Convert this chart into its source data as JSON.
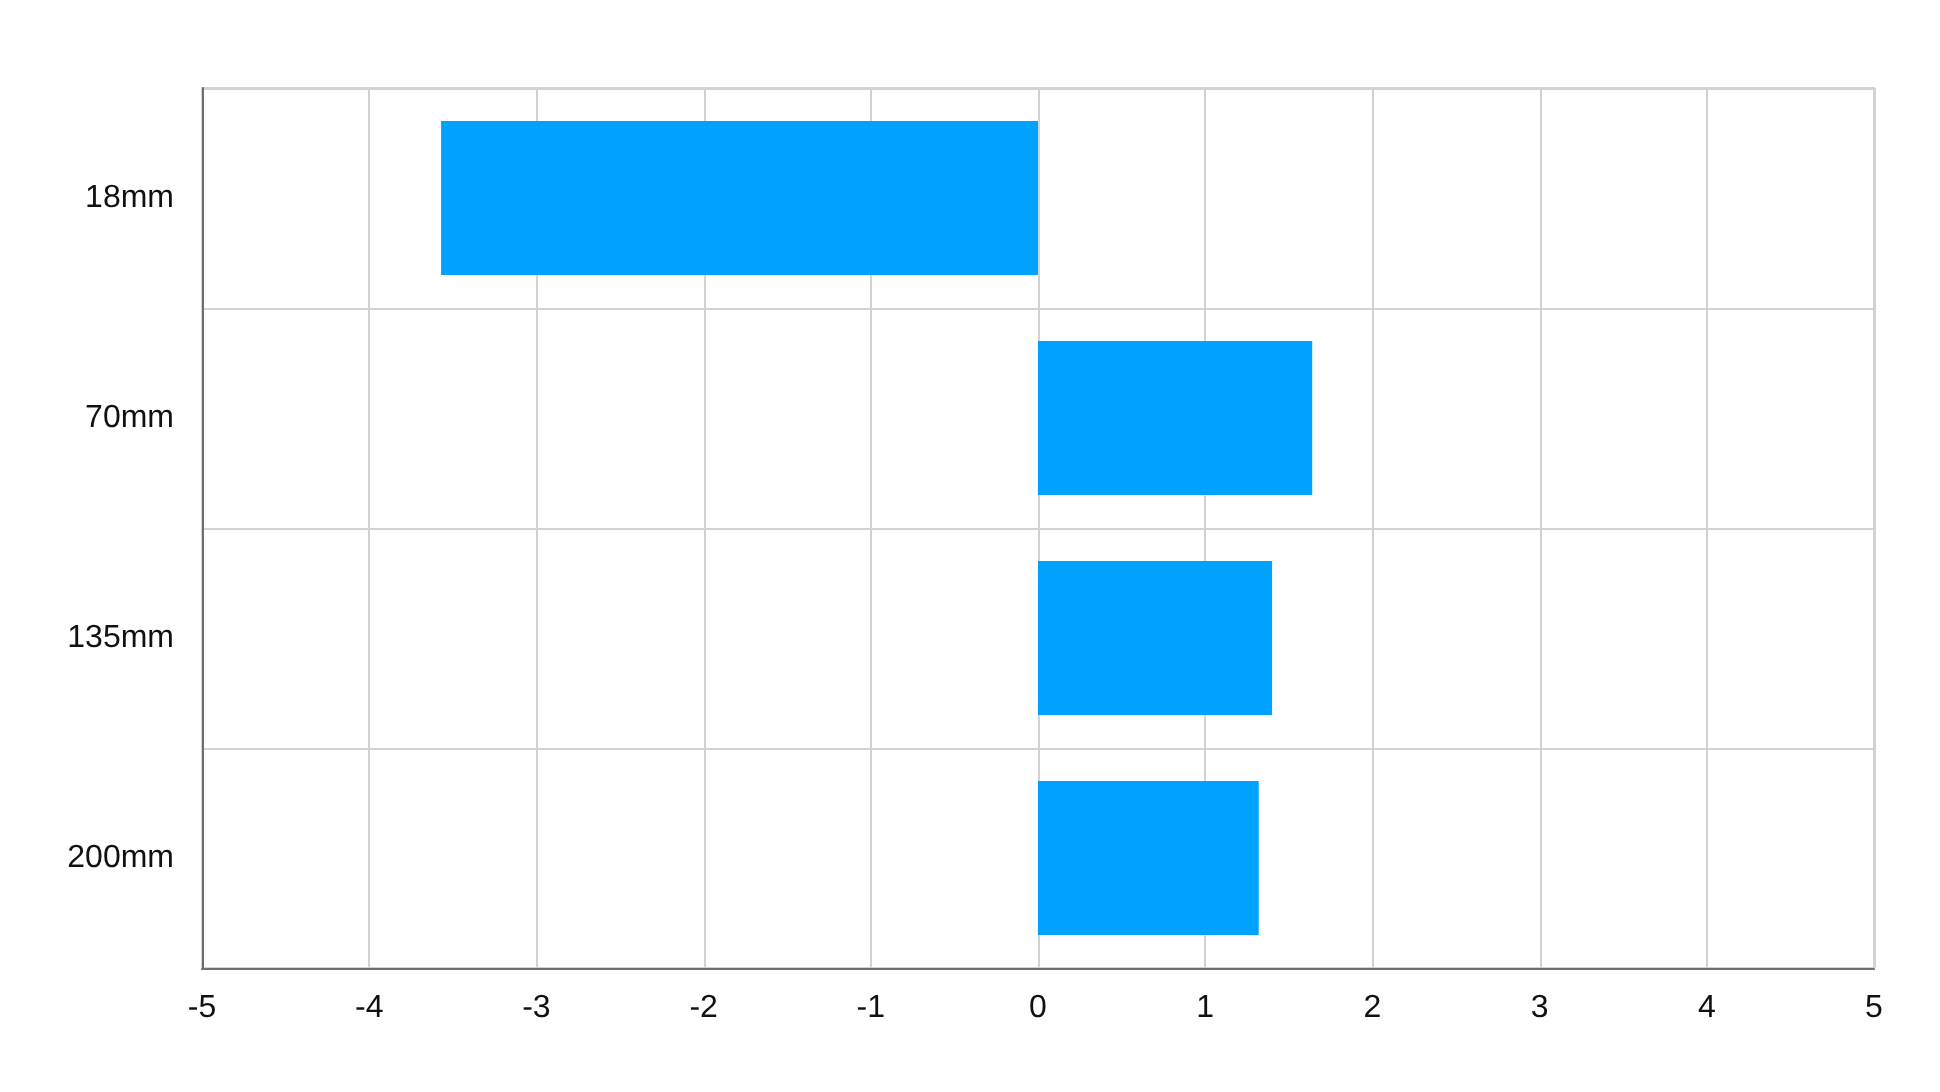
{
  "chart_data": {
    "type": "bar",
    "orientation": "horizontal",
    "categories": [
      "18mm",
      "70mm",
      "135mm",
      "200mm"
    ],
    "values": [
      -3.57,
      1.64,
      1.4,
      1.32
    ],
    "color": "#00a2ff",
    "xlim": [
      -5,
      5
    ],
    "xticks": [
      -5,
      -4,
      -3,
      -2,
      -1,
      0,
      1,
      2,
      3,
      4,
      5
    ],
    "grid": true
  }
}
